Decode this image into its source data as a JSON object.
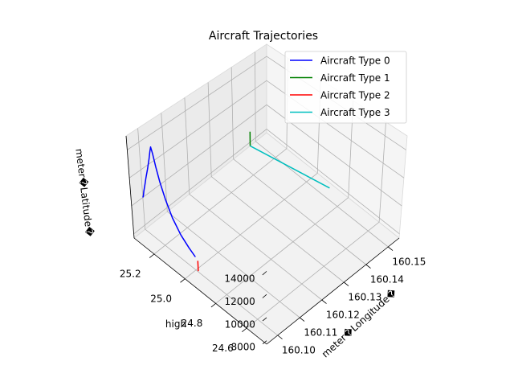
{
  "chart_data": {
    "type": "line3d",
    "title": "Aircraft Trajectories",
    "xlabel": "meter�Longitude�",
    "ylabel": "high",
    "zlabel": "meter�Latitude�",
    "xlim": [
      160.095,
      160.155
    ],
    "ylim": [
      24.47,
      25.33
    ],
    "zlim": [
      7700,
      15000
    ],
    "x_ticks": [
      "160.10",
      "160.11",
      "160.12",
      "160.13",
      "160.14",
      "160.15"
    ],
    "y_ticks": [
      "24.6",
      "24.8",
      "25.0",
      "25.2"
    ],
    "z_ticks": [
      "8000",
      "10000",
      "12000",
      "14000"
    ],
    "grid": true,
    "legend_position": "top-right",
    "series": [
      {
        "name": "Aircraft Type 0",
        "color": "#0000ff",
        "points": [
          [
            160.1,
            25.33,
            10000
          ],
          [
            160.1,
            25.325,
            10200
          ],
          [
            160.1,
            25.32,
            10550
          ],
          [
            160.1,
            25.312,
            11000
          ],
          [
            160.1,
            25.3,
            11700
          ],
          [
            160.1,
            25.285,
            12500
          ],
          [
            160.1,
            25.27,
            13400
          ],
          [
            160.1,
            25.262,
            14000
          ],
          [
            160.1,
            25.255,
            14400
          ],
          [
            160.1,
            25.245,
            14000
          ],
          [
            160.1,
            25.23,
            13200
          ],
          [
            160.1,
            25.21,
            12300
          ],
          [
            160.1,
            25.18,
            11300
          ],
          [
            160.1,
            25.14,
            10300
          ],
          [
            160.1,
            25.09,
            9500
          ],
          [
            160.1,
            25.04,
            9000
          ],
          [
            160.1,
            25.0,
            8700
          ]
        ]
      },
      {
        "name": "Aircraft Type 1",
        "color": "#008000",
        "points": [
          [
            160.147,
            25.322,
            7850
          ],
          [
            160.147,
            25.322,
            9000
          ]
        ]
      },
      {
        "name": "Aircraft Type 2",
        "color": "#ff0000",
        "points": [
          [
            160.1,
            24.985,
            8550
          ],
          [
            160.1,
            24.985,
            7750
          ]
        ]
      },
      {
        "name": "Aircraft Type 3",
        "color": "#00bfbf",
        "points": [
          [
            160.147,
            25.322,
            7850
          ],
          [
            160.1535,
            24.9,
            7700
          ]
        ]
      }
    ]
  }
}
